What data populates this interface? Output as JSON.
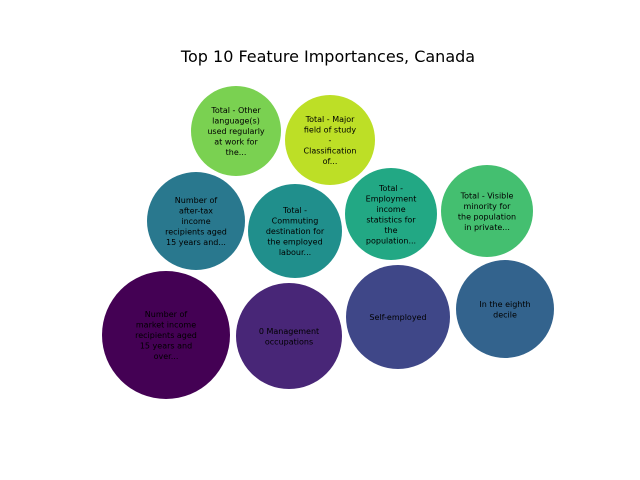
{
  "chart_data": {
    "type": "bubble",
    "title": "Top 10 Feature Importances, Canada",
    "xlabel": "",
    "ylabel": "",
    "axes_visible": false,
    "grid": false,
    "legend": "none",
    "bubbles": [
      {
        "label": "Number of market income recipients aged 15 years and over...",
        "lines": [
          "Number of",
          "market income",
          "recipients aged",
          "15 years and",
          "over..."
        ],
        "color": "#440154"
      },
      {
        "label": "0 Management occupations",
        "lines": [
          "0 Management",
          "occupations"
        ],
        "color": "#482677"
      },
      {
        "label": "Self-employed",
        "lines": [
          "Self-employed"
        ],
        "color": "#3f4788"
      },
      {
        "label": "In the eighth decile",
        "lines": [
          "In the eighth",
          "decile"
        ],
        "color": "#33638d"
      },
      {
        "label": "Number of after-tax income recipients aged 15 years and...",
        "lines": [
          "Number of",
          "after-tax",
          "income",
          "recipients aged",
          "15 years and..."
        ],
        "color": "#29788e"
      },
      {
        "label": "Total - Commuting destination for the employed labour...",
        "lines": [
          "Total -",
          "Commuting",
          "destination for",
          "the employed",
          "labour..."
        ],
        "color": "#208f8c"
      },
      {
        "label": "Total - Employment income statistics for the population...",
        "lines": [
          "Total -",
          "Employment",
          "income",
          "statistics for",
          "the",
          "population..."
        ],
        "color": "#22a884"
      },
      {
        "label": "Total - Visible minority for the population in private...",
        "lines": [
          "Total - Visible",
          "minority for",
          "the population",
          "in private..."
        ],
        "color": "#44bf70"
      },
      {
        "label": "Total - Other language(s) used regularly at work for the...",
        "lines": [
          "Total - Other",
          "language(s)",
          "used regularly",
          "at work for",
          "the..."
        ],
        "color": "#7ad151"
      },
      {
        "label": "Total - Major field of study - Classification of...",
        "lines": [
          "Total - Major",
          "field of study",
          "-",
          "Classification",
          "of..."
        ],
        "color": "#bddf26"
      }
    ]
  }
}
